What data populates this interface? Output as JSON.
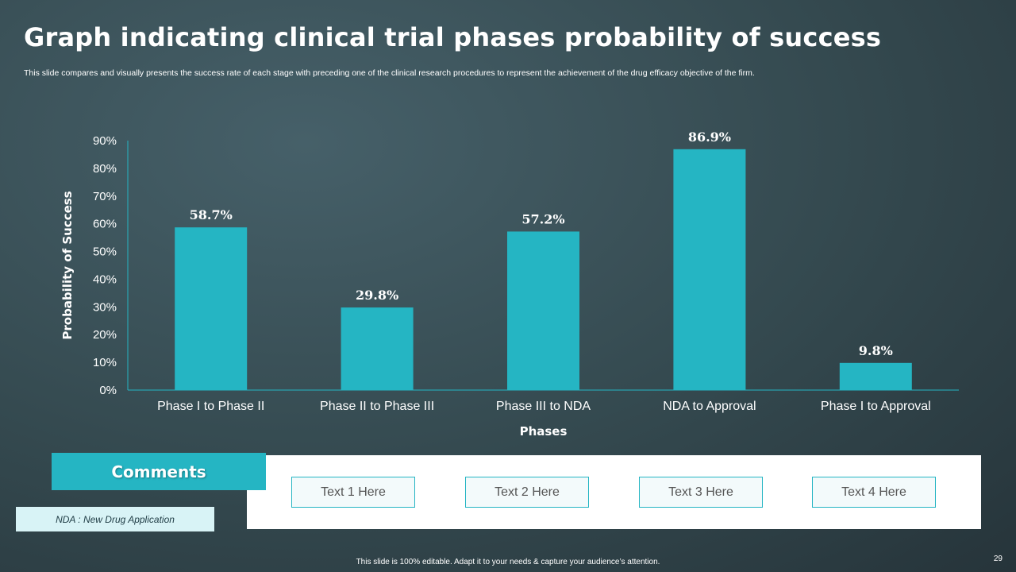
{
  "slide": {
    "title": "Graph indicating clinical trial phases probability of success",
    "subtitle": "This slide compares and visually presents the success rate of each stage with preceding one of the clinical research procedures to represent the achievement of the drug efficacy objective of the firm.",
    "footer": "This slide is 100% editable.  Adapt it to your needs & capture your audience’s attention.",
    "page_number": "29"
  },
  "chart_data": {
    "type": "bar",
    "title": "",
    "categories": [
      "Phase I to Phase II",
      "Phase II to Phase III",
      "Phase III to NDA",
      "NDA to Approval",
      "Phase I to Approval"
    ],
    "values": [
      58.7,
      29.8,
      57.2,
      86.9,
      9.8
    ],
    "data_labels": [
      "58.7%",
      "29.8%",
      "57.2%",
      "86.9%",
      "9.8%"
    ],
    "xlabel": "Phases",
    "ylabel": "Probability  of Success",
    "ylim": [
      0,
      90
    ],
    "yticks": [
      0,
      10,
      20,
      30,
      40,
      50,
      60,
      70,
      80,
      90
    ],
    "ytick_labels": [
      "0%",
      "10%",
      "20%",
      "30%",
      "40%",
      "50%",
      "60%",
      "70%",
      "80%",
      "90%"
    ],
    "grid": false,
    "bar_color": "#25b5c3"
  },
  "comments": {
    "header": "Comments",
    "boxes": [
      "Text  1 Here",
      "Text  2 Here",
      "Text  3 Here",
      "Text  4 Here"
    ]
  },
  "note": "NDA : New Drug Application",
  "colors": {
    "accent": "#25b5c3",
    "note_bg": "#d8f3f6"
  }
}
